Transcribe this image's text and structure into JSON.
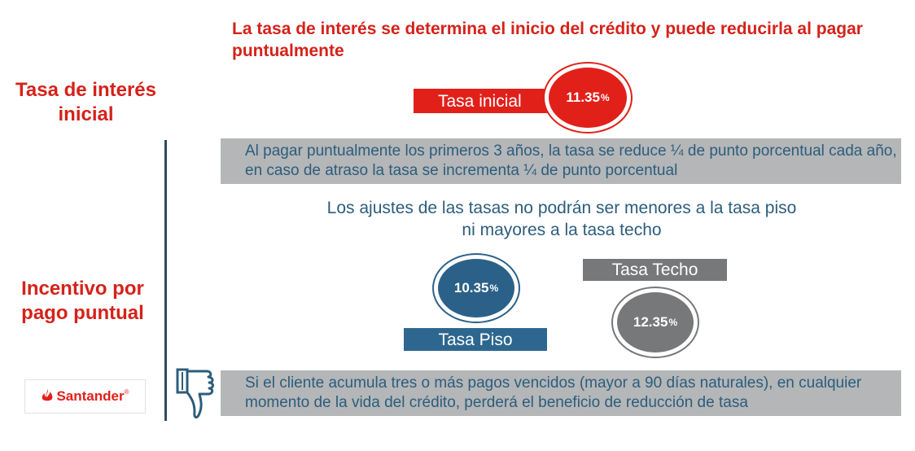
{
  "headline": "La tasa de interés se determina el inicio del crédito y puede reducirla al pagar puntualmente",
  "section_labels": {
    "initial": "Tasa de interés inicial",
    "incentive": "Incentivo por pago puntual"
  },
  "initial_rate": {
    "label": "Tasa inicial",
    "value": "11.35",
    "unit": "%"
  },
  "top_note": "Al pagar puntualmente los primeros 3 años, la tasa se reduce ¼ de punto porcentual cada año, en caso de atraso la tasa se incrementa ¼ de punto porcentual",
  "adjust_note": "Los ajustes de las tasas no podrán ser menores a la tasa piso ni mayores a la tasa techo",
  "floor_rate": {
    "label": "Tasa Piso",
    "value": "10.35",
    "unit": "%"
  },
  "ceiling_rate": {
    "label": "Tasa Techo",
    "value": "12.35",
    "unit": "%"
  },
  "bottom_note": "Si el cliente acumula tres o más pagos vencidos (mayor a 90 días naturales), en cualquier momento de la vida del crédito, perderá el beneficio de reducción de tasa",
  "logo": {
    "text": "Santander",
    "mark": "®"
  },
  "colors": {
    "red": "#e2201a",
    "blue": "#2b6189",
    "gray": "#77787a",
    "navy": "#2f4a63"
  }
}
